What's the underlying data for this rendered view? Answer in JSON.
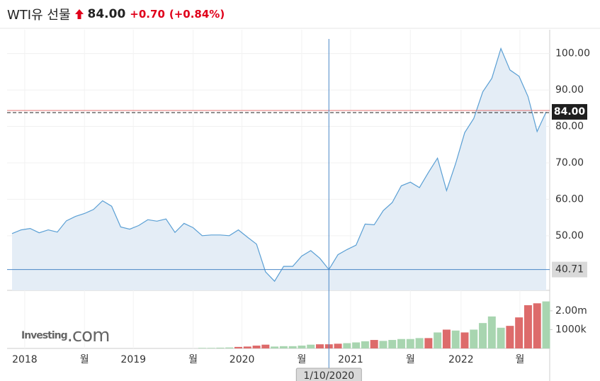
{
  "header": {
    "title": "WTI유 선물",
    "price": "84.00",
    "change": "+0.70",
    "change_percent": "(+0.84%)"
  },
  "chart_data": {
    "type": "line",
    "color": "#5a9fd4",
    "fill": "#e4edf6",
    "grid": true,
    "watermark": [
      "Investing",
      ".com"
    ],
    "x": [
      0,
      1,
      2,
      3,
      4,
      5,
      6,
      7,
      8,
      9,
      10,
      11,
      12,
      13,
      14,
      15,
      16,
      17,
      18,
      19,
      20,
      21,
      22,
      23,
      24,
      25,
      26,
      27,
      28,
      29,
      30,
      31,
      32,
      33,
      34,
      35,
      36,
      37,
      38,
      39,
      40,
      41,
      42,
      43,
      44,
      45,
      46,
      47,
      48,
      49,
      50,
      51,
      52,
      53,
      54,
      55,
      56,
      57,
      58,
      59
    ],
    "values": [
      50.6,
      51.6,
      52,
      50.8,
      51.6,
      51,
      54.1,
      55.3,
      56.1,
      57.2,
      59.6,
      58.1,
      52.4,
      51.8,
      52.8,
      54.4,
      54,
      54.6,
      50.9,
      53.4,
      52.2,
      50,
      50.2,
      50.2,
      50,
      51.6,
      49.6,
      47.7,
      40.1,
      37.5,
      41.6,
      41.6,
      44.4,
      45.9,
      43.8,
      40.71,
      44.8,
      46.2,
      47.4,
      53.2,
      53,
      56.9,
      59.1,
      63.7,
      64.7,
      63.2,
      67.4,
      71.3,
      62.4,
      69.8,
      78.3,
      82.2,
      89.5,
      93.2,
      101.4,
      95.5,
      93.8,
      88.2,
      78.6,
      84
    ],
    "xlim": [
      0,
      59
    ],
    "ylim": [
      35,
      104.6
    ],
    "yticks": [
      {
        "value": 50,
        "label": "50.00"
      },
      {
        "value": 60,
        "label": "60.00"
      },
      {
        "value": 70,
        "label": "70.00"
      },
      {
        "value": 80,
        "label": "80.00"
      },
      {
        "value": 90,
        "label": "90.00"
      },
      {
        "value": 100,
        "label": "100.00"
      }
    ],
    "xticks": [
      {
        "value": 1.4,
        "label": "2018"
      },
      {
        "value": 8.0,
        "label": "월"
      },
      {
        "value": 13.4,
        "label": "2019"
      },
      {
        "value": 20.0,
        "label": "월"
      },
      {
        "value": 25.4,
        "label": "2020"
      },
      {
        "value": 32.0,
        "label": "월"
      },
      {
        "value": 37.4,
        "label": "2021"
      },
      {
        "value": 44.0,
        "label": "월"
      },
      {
        "value": 49.6,
        "label": "2022"
      },
      {
        "value": 56.1,
        "label": "월"
      }
    ],
    "last_price": {
      "value": 84,
      "label": "84.00"
    },
    "crosshair": {
      "x": 35,
      "x_label": "1/10/2020",
      "y": 40.71,
      "y_label": "40.71"
    },
    "volume": {
      "values": [
        null,
        null,
        null,
        null,
        null,
        null,
        null,
        null,
        null,
        null,
        null,
        null,
        null,
        null,
        null,
        null,
        null,
        null,
        null,
        null,
        null,
        30000,
        30000,
        40000,
        50000,
        80000,
        100000,
        150000,
        200000,
        100000,
        120000,
        120000,
        150000,
        200000,
        220000,
        220000,
        250000,
        280000,
        320000,
        380000,
        450000,
        400000,
        450000,
        500000,
        500000,
        550000,
        550000,
        850000,
        1000000,
        950000,
        850000,
        1000000,
        1350000,
        1700000,
        1100000,
        1200000,
        1650000,
        2300000,
        2400000,
        2500000
      ],
      "colors": [
        null,
        null,
        null,
        null,
        null,
        null,
        null,
        null,
        null,
        null,
        null,
        null,
        null,
        null,
        null,
        null,
        null,
        null,
        null,
        null,
        null,
        "#a8d5b0",
        "#a8d5b0",
        "#a8d5b0",
        "#a8d5b0",
        "#dd6b6b",
        "#dd6b6b",
        "#dd6b6b",
        "#dd6b6b",
        "#a8d5b0",
        "#a8d5b0",
        "#a8d5b0",
        "#a8d5b0",
        "#a8d5b0",
        "#dd6b6b",
        "#dd6b6b",
        "#dd6b6b",
        "#a8d5b0",
        "#a8d5b0",
        "#a8d5b0",
        "#dd6b6b",
        "#a8d5b0",
        "#a8d5b0",
        "#a8d5b0",
        "#a8d5b0",
        "#a8d5b0",
        "#dd6b6b",
        "#a8d5b0",
        "#dd6b6b",
        "#a8d5b0",
        "#dd6b6b",
        "#a8d5b0",
        "#a8d5b0",
        "#a8d5b0",
        "#a8d5b0",
        "#dd6b6b",
        "#dd6b6b",
        "#dd6b6b",
        "#dd6b6b",
        "#a8d5b0"
      ],
      "ylim": [
        0,
        2900000
      ],
      "yticks": [
        {
          "value": 1000000,
          "label": "1000k"
        },
        {
          "value": 2000000,
          "label": "2.00m"
        }
      ]
    }
  }
}
